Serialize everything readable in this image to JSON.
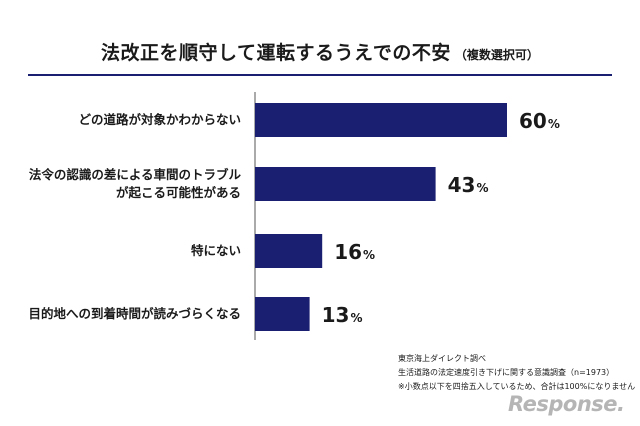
{
  "header": {
    "title": "法改正を順守して運転するうえでの不安",
    "title_note": "（複数選択可）"
  },
  "chart_data": {
    "type": "bar",
    "orientation": "horizontal",
    "title": "法改正を順守して運転するうえでの不安（複数選択可）",
    "categories": [
      [
        "どの道路が対象かわからない"
      ],
      [
        "法令の認識の差による車間のトラブル",
        "が起こる可能性がある"
      ],
      [
        "特にない"
      ],
      [
        "目的地への到着時間が読みづらくなる"
      ]
    ],
    "values": [
      60,
      43,
      16,
      13
    ],
    "value_suffix": "%",
    "bar_color": "#1a1f71",
    "xlim": [
      0,
      100
    ],
    "grid": false,
    "legend": "none"
  },
  "notes": [
    "東京海上ダイレクト調べ",
    "生活道路の法定速度引き下げに関する意識調査（n=1973）",
    "※小数点以下を四捨五入しているため、合計は100%になりません"
  ],
  "logo_text": "Response."
}
